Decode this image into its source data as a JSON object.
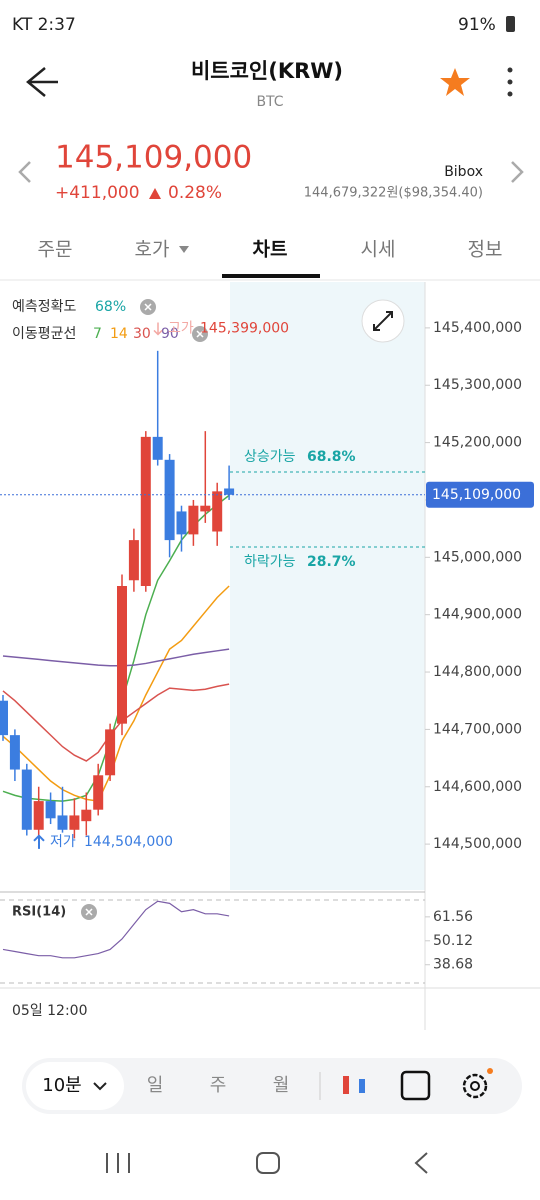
{
  "status_bar": {
    "carrier_time": "KT 2:37",
    "battery": "91%"
  },
  "header": {
    "title": "비트코인(KRW)",
    "symbol": "BTC"
  },
  "price": {
    "current": "145,109,000",
    "change": "+411,000",
    "change_rate": "0.28%",
    "exchange": "Bibox",
    "exchange_price": "144,679,322원($98,354.40)"
  },
  "tabs": [
    "주문",
    "호가",
    "차트",
    "시세",
    "정보"
  ],
  "legend": {
    "accuracy_label": "예측정확도",
    "accuracy_value": "68%",
    "ma_label": "이동평균선"
  },
  "chart_data": [
    {
      "type": "candlestick",
      "up_color": "#e0453a",
      "down_color": "#3b7de0",
      "open": [
        144750000,
        144690000,
        144630000,
        144525000,
        144575000,
        144550000,
        144525000,
        144540000,
        144560000,
        144620000,
        144710000,
        144960000,
        144950000,
        145210000,
        145170000,
        145080000,
        145040000,
        145080000,
        145045000,
        145120000
      ],
      "high": [
        144760000,
        144700000,
        144640000,
        144600000,
        144590000,
        144600000,
        144580000,
        144590000,
        144640000,
        144710000,
        144970000,
        145050000,
        145220000,
        145360000,
        145180000,
        145090000,
        145100000,
        145220000,
        145130000,
        145160000
      ],
      "low": [
        144680000,
        144610000,
        144515000,
        144510000,
        144535000,
        144520000,
        144510000,
        144515000,
        144550000,
        144610000,
        144690000,
        144940000,
        144940000,
        145160000,
        145000000,
        145010000,
        145020000,
        145060000,
        145020000,
        145100000
      ],
      "close": [
        144690000,
        144630000,
        144525000,
        144575000,
        144545000,
        144525000,
        144550000,
        144560000,
        144620000,
        144700000,
        144950000,
        145030000,
        145210000,
        145170000,
        145030000,
        145040000,
        145090000,
        145090000,
        145115000,
        145109000
      ],
      "series": [
        {
          "name": "7",
          "color": "#4caf50",
          "values": [
            144592000,
            144585000,
            144580000,
            144578000,
            144576000,
            144575000,
            144578000,
            144585000,
            144620000,
            144680000,
            144750000,
            144820000,
            144900000,
            144960000,
            144994000,
            145030000,
            145055000,
            145075000,
            145092000,
            145108000
          ]
        },
        {
          "name": "14",
          "color": "#f39c12",
          "values": [
            144688000,
            144670000,
            144650000,
            144630000,
            144610000,
            144595000,
            144585000,
            144578000,
            144575000,
            144620000,
            144680000,
            144715000,
            144760000,
            144800000,
            144840000,
            144855000,
            144880000,
            144905000,
            144930000,
            144950000
          ]
        },
        {
          "name": "30",
          "color": "#d9534f",
          "values": [
            144767000,
            144750000,
            144730000,
            144710000,
            144690000,
            144670000,
            144655000,
            144645000,
            144660000,
            144690000,
            144715000,
            144730000,
            144745000,
            144760000,
            144772000,
            144770000,
            144768000,
            144770000,
            144775000,
            144779000
          ]
        },
        {
          "name": "90",
          "color": "#7b5ea7",
          "values": [
            144828000,
            144826000,
            144824000,
            144822000,
            144820000,
            144818000,
            144816000,
            144814000,
            144812000,
            144811000,
            144811000,
            144812000,
            144815000,
            144819000,
            144823000,
            144827000,
            144831000,
            144834000,
            144837000,
            144840000
          ]
        }
      ],
      "ylim": [
        144420000,
        145480000
      ],
      "yticks": [
        {
          "value": 145400000,
          "label": "145,400,000"
        },
        {
          "value": 145300000,
          "label": "145,300,000"
        },
        {
          "value": 145200000,
          "label": "145,200,000"
        },
        {
          "value": 145100000,
          "label": "145,100,000"
        },
        {
          "value": 145000000,
          "label": "145,000,000"
        },
        {
          "value": 144900000,
          "label": "144,900,000"
        },
        {
          "value": 144800000,
          "label": "144,800,000"
        },
        {
          "value": 144700000,
          "label": "144,700,000"
        },
        {
          "value": 144600000,
          "label": "144,600,000"
        },
        {
          "value": 144500000,
          "label": "144,500,000"
        }
      ],
      "current_price": {
        "value": 145109000,
        "label": "145,109,000"
      },
      "high_label": "고가",
      "high_value": {
        "value": 145399000,
        "label": "145,399,000"
      },
      "low_label": "저가",
      "low_value": {
        "value": 144504000,
        "label": "144,504,000"
      },
      "up_label": "상승가능",
      "up_prob": "68.8%",
      "down_label": "하락가능",
      "down_prob": "28.7%",
      "xlabel": "05일 12:00"
    },
    {
      "type": "line",
      "title": "RSI(14)",
      "color": "#7b5ea7",
      "values": [
        46,
        45,
        44,
        43,
        43,
        42,
        42,
        43,
        44,
        46,
        51,
        58,
        65,
        69,
        68,
        64,
        65,
        63,
        63,
        62
      ],
      "ylim": [
        29,
        72
      ],
      "yticks": [
        61.56,
        50.12,
        38.68
      ]
    }
  ],
  "toolbar": {
    "interval": "10분",
    "items": [
      "일",
      "주",
      "월"
    ]
  }
}
